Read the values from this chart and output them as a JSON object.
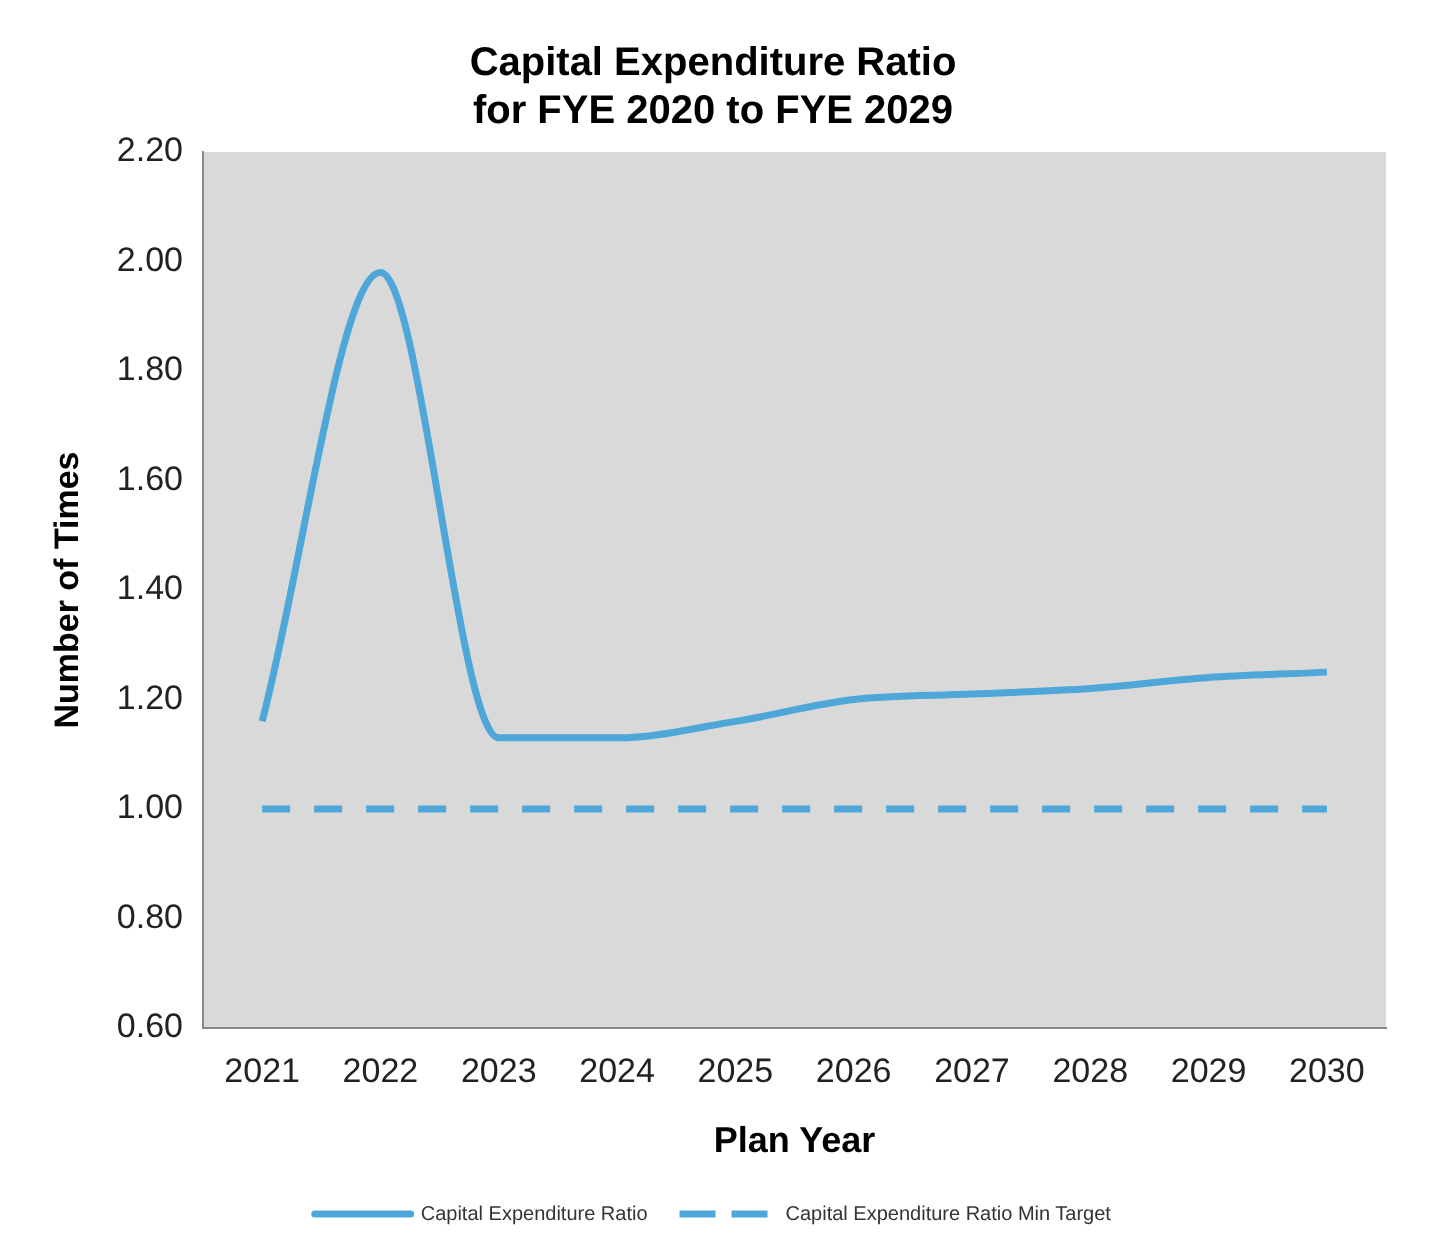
{
  "chart_data": {
    "type": "line",
    "title": "Capital Expenditure Ratio\nfor FYE 2020 to FYE 2029",
    "xlabel": "Plan Year",
    "ylabel": "Number of Times",
    "categories": [
      "2021",
      "2022",
      "2023",
      "2024",
      "2025",
      "2026",
      "2027",
      "2028",
      "2029",
      "2030"
    ],
    "series": [
      {
        "name": "Capital Expenditure Ratio",
        "color": "#4ea7d8",
        "line_style": "solid",
        "values": [
          1.16,
          1.98,
          1.13,
          1.13,
          1.16,
          1.2,
          1.21,
          1.22,
          1.24,
          1.25
        ]
      },
      {
        "name": "Capital Expenditure Ratio Min Target",
        "color": "#4ea7d8",
        "line_style": "dashed",
        "values": [
          1,
          1,
          1,
          1,
          1,
          1,
          1,
          1,
          1,
          1
        ]
      }
    ],
    "ylim": [
      0.6,
      2.2
    ],
    "yticks": [
      {
        "value": 0.6,
        "label": "0.60"
      },
      {
        "value": 0.8,
        "label": "0.80"
      },
      {
        "value": 1,
        "label": "1.00"
      },
      {
        "value": 1.2,
        "label": "1.20"
      },
      {
        "value": 1.4,
        "label": "1.40"
      },
      {
        "value": 1.6,
        "label": "1.60"
      },
      {
        "value": 1.8,
        "label": "1.80"
      },
      {
        "value": 2,
        "label": "2.00"
      },
      {
        "value": 2.2,
        "label": "2.20"
      }
    ],
    "grid": false,
    "legend": "bottom",
    "marker": "none"
  }
}
